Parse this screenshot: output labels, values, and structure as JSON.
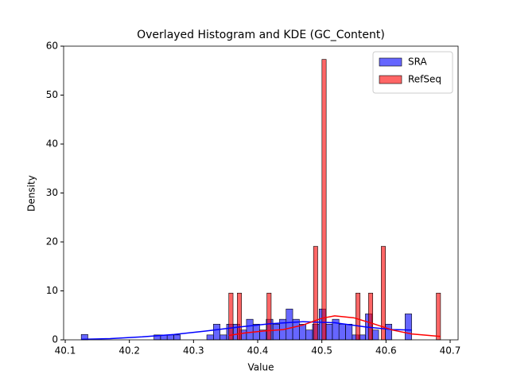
{
  "chart_data": {
    "type": "histogram",
    "title": "Overlayed Histogram and KDE (GC_Content)",
    "xlabel": "Value",
    "ylabel": "Density",
    "xlim": [
      40.0975,
      40.7124
    ],
    "ylim": [
      0,
      60
    ],
    "xticks": [
      40.1,
      40.2,
      40.3,
      40.4,
      40.5,
      40.6,
      40.7
    ],
    "yticks": [
      0,
      10,
      20,
      30,
      40,
      50,
      60
    ],
    "legend": "upper right",
    "series": [
      {
        "name": "SRA",
        "color": "#0000ff",
        "bins": [
          40.125,
          40.1353,
          40.1456,
          40.1559,
          40.1662,
          40.1765,
          40.1868,
          40.1971,
          40.2074,
          40.2177,
          40.228,
          40.2383,
          40.2486,
          40.2589,
          40.2692,
          40.2795,
          40.2898,
          40.3001,
          40.3104,
          40.3207,
          40.331,
          40.3413,
          40.3516,
          40.3619,
          40.3722,
          40.3825,
          40.3928,
          40.4031,
          40.4134,
          40.4237,
          40.434,
          40.4443,
          40.4546,
          40.4649,
          40.4752,
          40.4855,
          40.4958,
          40.5061,
          40.5164,
          40.5267,
          40.537,
          40.5473,
          40.5576,
          40.5679,
          40.5782,
          40.5885,
          40.5988,
          40.6091,
          40.6194,
          40.6297,
          40.64
        ],
        "values": [
          1.1,
          0,
          0,
          0,
          0,
          0,
          0,
          0,
          0,
          0,
          0,
          1,
          1,
          1,
          1,
          0,
          0,
          0,
          0,
          1,
          3.2,
          1,
          3.2,
          3.2,
          2,
          4.2,
          3.2,
          2,
          4.2,
          3.2,
          4.2,
          6.3,
          4.2,
          3.2,
          2,
          3.2,
          6.3,
          3.2,
          4.2,
          3.2,
          3.2,
          1,
          1,
          5.3,
          2,
          0,
          3.2,
          0,
          0,
          5.3
        ],
        "kde": {
          "x": [
            40.125,
            40.17,
            40.22,
            40.27,
            40.32,
            40.37,
            40.42,
            40.47,
            40.52,
            40.57,
            40.61,
            40.64
          ],
          "values": [
            0.1,
            0.25,
            0.6,
            1.1,
            1.8,
            2.6,
            3.3,
            3.7,
            3.5,
            2.6,
            2.1,
            2.0
          ]
        }
      },
      {
        "name": "RefSeq",
        "color": "#ff0000",
        "bins": [
          40.355,
          40.3616,
          40.3682,
          40.3748,
          40.3814,
          40.388,
          40.3946,
          40.4012,
          40.4078,
          40.4144,
          40.421,
          40.4276,
          40.4342,
          40.4408,
          40.4474,
          40.454,
          40.4606,
          40.4672,
          40.4738,
          40.4804,
          40.487,
          40.4936,
          40.5002,
          40.5068,
          40.5134,
          40.52,
          40.5266,
          40.5332,
          40.5398,
          40.5464,
          40.553,
          40.5596,
          40.5662,
          40.5728,
          40.5794,
          40.586,
          40.5926,
          40.5992,
          40.6058,
          40.6124,
          40.619,
          40.6256,
          40.6322,
          40.6388,
          40.6454,
          40.652,
          40.6586,
          40.6652,
          40.6718,
          40.6784,
          40.685
        ],
        "values": [
          9.55,
          0,
          9.55,
          0,
          0,
          0,
          0,
          0,
          0,
          9.55,
          0,
          0,
          0,
          0,
          0,
          0,
          0,
          0,
          0,
          0,
          19.1,
          0,
          57.3,
          0,
          0,
          0,
          0,
          0,
          0,
          0,
          9.55,
          0,
          0,
          9.55,
          0,
          0,
          19.1,
          0,
          0,
          0,
          0,
          0,
          0,
          0,
          0,
          0,
          0,
          0,
          0,
          9.55
        ],
        "kde": {
          "x": [
            40.355,
            40.38,
            40.41,
            40.44,
            40.47,
            40.5,
            40.52,
            40.55,
            40.58,
            40.61,
            40.64,
            40.685
          ],
          "values": [
            0.9,
            1.4,
            1.8,
            2.1,
            3,
            4.4,
            4.9,
            4.5,
            3.3,
            2.0,
            1.2,
            0.7
          ]
        }
      }
    ]
  }
}
